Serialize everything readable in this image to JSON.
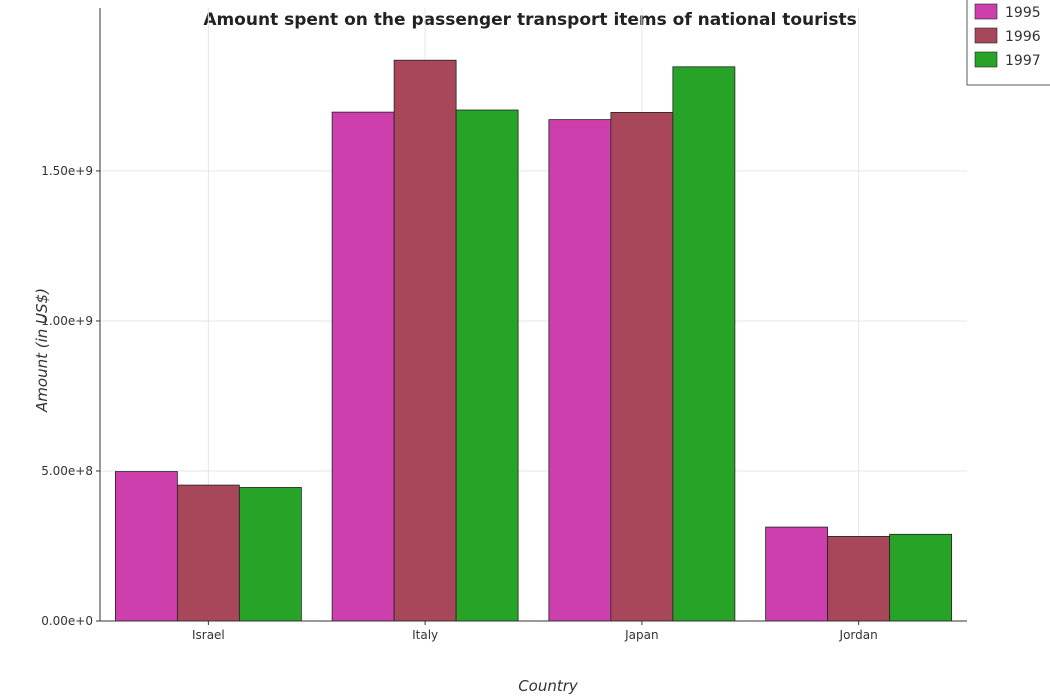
{
  "chart_data": {
    "type": "bar",
    "title": "Amount spent on the passenger transport items of national tourists",
    "xlabel": "Country",
    "ylabel": "Amount (in US$)",
    "categories": [
      "Israel",
      "Italy",
      "Japan",
      "Jordan"
    ],
    "series": [
      {
        "name": "1995",
        "color": "#cc3fac",
        "values": [
          498000000,
          1696000000,
          1671000000,
          313000000
        ]
      },
      {
        "name": "1996",
        "color": "#a8475a",
        "values": [
          453000000,
          1869000000,
          1695000000,
          282000000
        ]
      },
      {
        "name": "1997",
        "color": "#27a327",
        "values": [
          445000000,
          1703000000,
          1847000000,
          289000000
        ]
      }
    ],
    "yticks": [
      0,
      500000000,
      1000000000,
      1500000000
    ],
    "ytick_labels": [
      "0.00e+0",
      "5.00e+8",
      "1.00e+9",
      "1.50e+9"
    ],
    "ylim": [
      0,
      2000000000
    ],
    "grid": true,
    "legend_position": "top-right"
  }
}
